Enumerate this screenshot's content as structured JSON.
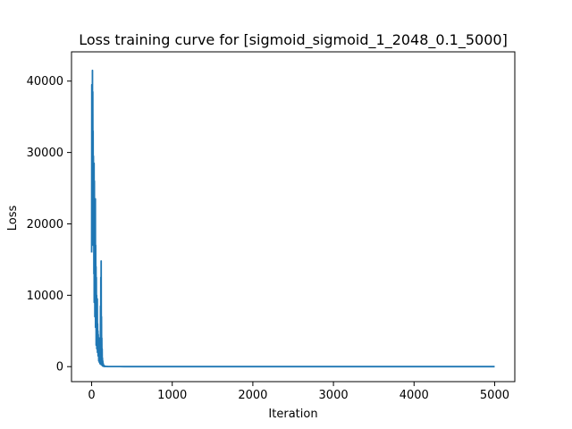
{
  "chart_data": {
    "type": "line",
    "title": "Loss training curve for [sigmoid_sigmoid_1_2048_0.1_5000]",
    "xlabel": "Iteration",
    "ylabel": "Loss",
    "xlim": [
      -250,
      5250
    ],
    "ylim": [
      -2100,
      44100
    ],
    "xticks": [
      0,
      1000,
      2000,
      3000,
      4000,
      5000
    ],
    "yticks": [
      0,
      10000,
      20000,
      30000,
      40000
    ],
    "xtick_labels": [
      "0",
      "1000",
      "2000",
      "3000",
      "4000",
      "5000"
    ],
    "ytick_labels": [
      "0",
      "10000",
      "20000",
      "30000",
      "40000"
    ],
    "grid": false,
    "legend": "none",
    "series": [
      {
        "color": "#1f77b4",
        "x": [
          0,
          2,
          4,
          6,
          8,
          10,
          12,
          14,
          16,
          18,
          20,
          22,
          24,
          26,
          28,
          30,
          32,
          34,
          36,
          38,
          40,
          42,
          44,
          46,
          48,
          50,
          52,
          54,
          56,
          58,
          60,
          62,
          64,
          66,
          68,
          70,
          72,
          74,
          76,
          78,
          80,
          82,
          84,
          86,
          88,
          90,
          92,
          94,
          96,
          98,
          100,
          102,
          104,
          106,
          108,
          110,
          112,
          114,
          116,
          118,
          120,
          122,
          124,
          126,
          128,
          130,
          132,
          134,
          136,
          138,
          140,
          142,
          144,
          146,
          148,
          150,
          152,
          154,
          156,
          158,
          160,
          162,
          164,
          166,
          168,
          170,
          175,
          180,
          185,
          190,
          195,
          200,
          220,
          250,
          300,
          350,
          400,
          500,
          700,
          1000,
          1500,
          2000,
          2500,
          3000,
          3500,
          4000,
          4500,
          5000
        ],
        "y": [
          16000,
          39500,
          22000,
          36000,
          18000,
          41500,
          20000,
          38500,
          26000,
          33000,
          17000,
          29500,
          23000,
          27000,
          13000,
          28500,
          9000,
          26000,
          12000,
          22000,
          7000,
          19000,
          10000,
          23500,
          5500,
          17000,
          8000,
          14000,
          3000,
          12500,
          5000,
          10000,
          2500,
          8500,
          4000,
          9500,
          2000,
          6000,
          3000,
          5000,
          1500,
          4500,
          2000,
          3500,
          800,
          2500,
          1000,
          4000,
          600,
          3000,
          800,
          2200,
          400,
          1800,
          600,
          8500,
          400,
          12500,
          300,
          14800,
          500,
          7000,
          300,
          4000,
          200,
          2500,
          150,
          1200,
          100,
          800,
          80,
          500,
          60,
          300,
          50,
          200,
          40,
          150,
          35,
          100,
          30,
          80,
          28,
          60,
          25,
          50,
          40,
          30,
          25,
          20,
          18,
          15,
          12,
          10,
          9,
          8,
          7,
          6,
          5,
          5,
          4,
          4,
          4,
          3,
          3,
          3,
          3,
          3
        ]
      }
    ]
  }
}
